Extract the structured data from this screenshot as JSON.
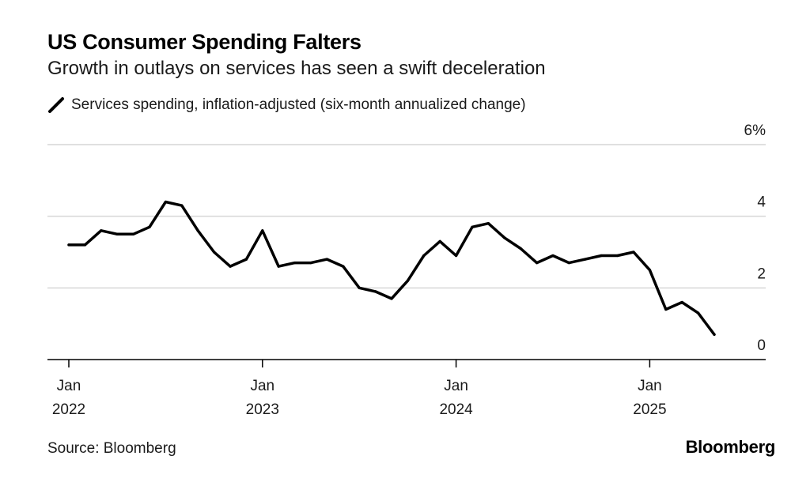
{
  "header": {
    "title": "US Consumer Spending Falters",
    "subtitle": "Growth in outlays on services has seen a swift deceleration"
  },
  "footer": {
    "source": "Source: Bloomberg",
    "brand": "Bloomberg"
  },
  "colors": {
    "line": "#000000",
    "grid": "#d6d6d6",
    "axis": "#000000"
  },
  "chart_data": {
    "type": "line",
    "title": "US Consumer Spending Falters",
    "subtitle": "Growth in outlays on services has seen a swift deceleration",
    "legend_position": "top-left",
    "grid": true,
    "x_ticks": [
      {
        "label_month": "Jan",
        "label_year": "2022",
        "date": "2022-01"
      },
      {
        "label_month": "Jan",
        "label_year": "2023",
        "date": "2023-01"
      },
      {
        "label_month": "Jan",
        "label_year": "2024",
        "date": "2024-01"
      },
      {
        "label_month": "Jan",
        "label_year": "2025",
        "date": "2025-01"
      }
    ],
    "y_ticks": [
      {
        "value": 0,
        "label": "0"
      },
      {
        "value": 2,
        "label": "2"
      },
      {
        "value": 4,
        "label": "4"
      },
      {
        "value": 6,
        "label": "6%"
      }
    ],
    "xlim": [
      "2021-12",
      "2025-07"
    ],
    "ylim": [
      0,
      6
    ],
    "series": [
      {
        "name": "Services spending, inflation-adjusted (six-month annualized change)",
        "x": [
          "2022-01",
          "2022-02",
          "2022-03",
          "2022-04",
          "2022-05",
          "2022-06",
          "2022-07",
          "2022-08",
          "2022-09",
          "2022-10",
          "2022-11",
          "2022-12",
          "2023-01",
          "2023-02",
          "2023-03",
          "2023-04",
          "2023-05",
          "2023-06",
          "2023-07",
          "2023-08",
          "2023-09",
          "2023-10",
          "2023-11",
          "2023-12",
          "2024-01",
          "2024-02",
          "2024-03",
          "2024-04",
          "2024-05",
          "2024-06",
          "2024-07",
          "2024-08",
          "2024-09",
          "2024-10",
          "2024-11",
          "2024-12",
          "2025-01",
          "2025-02",
          "2025-03",
          "2025-04",
          "2025-05"
        ],
        "values": [
          3.2,
          3.2,
          3.6,
          3.5,
          3.5,
          3.7,
          4.4,
          4.3,
          3.6,
          3.0,
          2.6,
          2.8,
          3.6,
          2.6,
          2.7,
          2.7,
          2.8,
          2.6,
          2.0,
          1.9,
          1.7,
          2.2,
          2.9,
          3.3,
          2.9,
          3.7,
          3.8,
          3.4,
          3.1,
          2.7,
          2.9,
          2.7,
          2.8,
          2.9,
          2.9,
          3.0,
          2.5,
          1.4,
          1.6,
          1.3,
          0.7
        ]
      }
    ]
  }
}
